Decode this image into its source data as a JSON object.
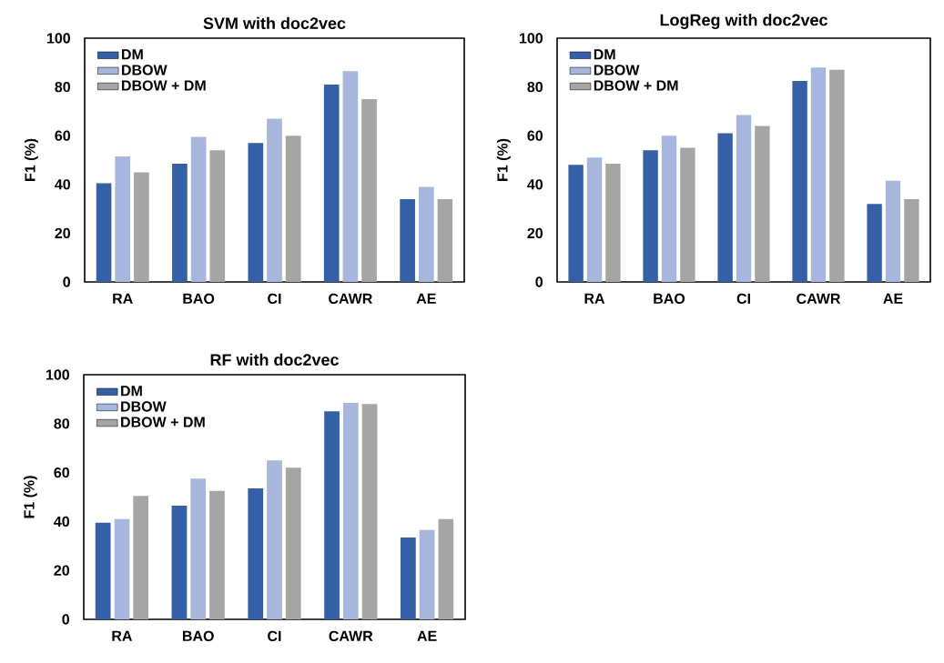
{
  "chart_data": [
    {
      "type": "bar",
      "title": "SVM with doc2vec",
      "ylabel": "F1 (%)",
      "categories": [
        "RA",
        "BAO",
        "CI",
        "CAWR",
        "AE"
      ],
      "ylim": [
        0,
        100
      ],
      "yticks": [
        0,
        20,
        40,
        60,
        80,
        100
      ],
      "legend": "top left",
      "series": [
        {
          "name": "DM",
          "color": "#3560a8",
          "values": [
            40.5,
            48.5,
            57,
            81,
            34
          ]
        },
        {
          "name": "DBOW",
          "color": "#a6b6dc",
          "values": [
            51.5,
            59.5,
            67,
            86.5,
            39
          ]
        },
        {
          "name": "DBOW + DM",
          "color": "#a5a5a5",
          "values": [
            45,
            54,
            60,
            75,
            34
          ]
        }
      ]
    },
    {
      "type": "bar",
      "title": "LogReg with doc2vec",
      "ylabel": "F1 (%)",
      "categories": [
        "RA",
        "BAO",
        "CI",
        "CAWR",
        "AE"
      ],
      "ylim": [
        0,
        100
      ],
      "yticks": [
        0,
        20,
        40,
        60,
        80,
        100
      ],
      "legend": "top left",
      "series": [
        {
          "name": "DM",
          "color": "#3560a8",
          "values": [
            48,
            54,
            61,
            82.5,
            32
          ]
        },
        {
          "name": "DBOW",
          "color": "#a6b6dc",
          "values": [
            51,
            60,
            68.5,
            88,
            41.5
          ]
        },
        {
          "name": "DBOW + DM",
          "color": "#a5a5a5",
          "values": [
            48.5,
            55,
            64,
            87,
            34
          ]
        }
      ]
    },
    {
      "type": "bar",
      "title": "RF with doc2vec",
      "ylabel": "F1 (%)",
      "categories": [
        "RA",
        "BAO",
        "CI",
        "CAWR",
        "AE"
      ],
      "ylim": [
        0,
        100
      ],
      "yticks": [
        0,
        20,
        40,
        60,
        80,
        100
      ],
      "legend": "top left",
      "series": [
        {
          "name": "DM",
          "color": "#3560a8",
          "values": [
            39.5,
            46.5,
            53.5,
            85,
            33.5
          ]
        },
        {
          "name": "DBOW",
          "color": "#a6b6dc",
          "values": [
            41,
            57.5,
            65,
            88.5,
            36.5
          ]
        },
        {
          "name": "DBOW + DM",
          "color": "#a5a5a5",
          "values": [
            50.5,
            52.5,
            62,
            88,
            41
          ]
        }
      ]
    }
  ]
}
